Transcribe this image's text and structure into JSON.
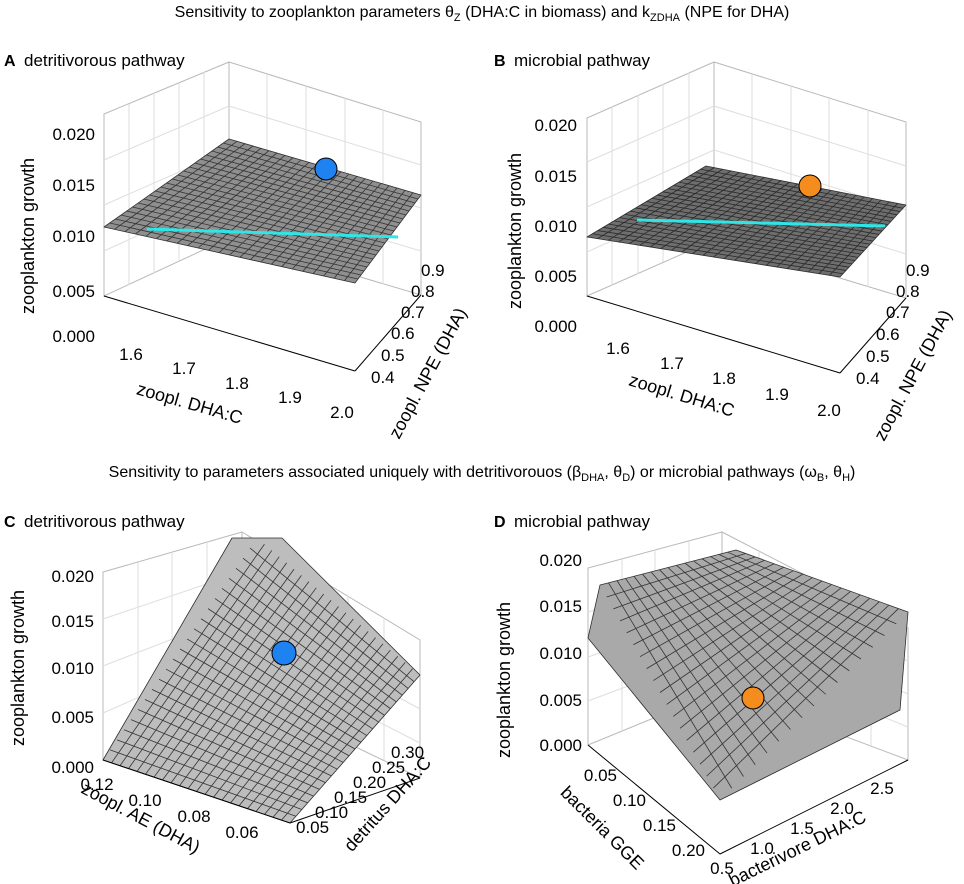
{
  "figure": {
    "title_top_main": "Sensitivity to zooplankton parameters θ",
    "title_top_sub1": "Z",
    "title_top_mid": " (DHA:C in biomass) and k",
    "title_top_sub2": "ZDHA",
    "title_top_end": " (NPE for DHA)",
    "title_bottom_main": "Sensitivity to parameters associated uniquely with detritivorouos (β",
    "title_bottom_sub1": "DHA",
    "title_bottom_p2": ", θ",
    "title_bottom_sub2": "D",
    "title_bottom_p3": ") or microbial pathways (ω",
    "title_bottom_sub3": "B",
    "title_bottom_p4": ", θ",
    "title_bottom_sub4": "H",
    "title_bottom_end": ")"
  },
  "chart_data": [
    {
      "type": "surface3d",
      "panel_label": "A",
      "title": "detritivorous pathway",
      "zlabel": "zooplankton growth",
      "xlabel": "zoopl. DHA:C",
      "ylabel": "zoopl. NPE (DHA)",
      "zticks": [
        "0.000",
        "0.005",
        "0.010",
        "0.015",
        "0.020"
      ],
      "xticks": [
        "1.6",
        "1.7",
        "1.8",
        "1.9",
        "2.0"
      ],
      "yticks": [
        "0.4",
        "0.5",
        "0.6",
        "0.7",
        "0.8",
        "0.9"
      ],
      "xlim": [
        1.55,
        2.0
      ],
      "ylim": [
        0.35,
        0.9
      ],
      "zlim": [
        0.0,
        0.02
      ],
      "reference_line": {
        "color": "#2ee6e6",
        "z": 0.0104
      },
      "marker": {
        "color": "#1e82f0",
        "x": 1.8,
        "y": 0.9,
        "z": 0.0157
      }
    },
    {
      "type": "surface3d",
      "panel_label": "B",
      "title": "microbial pathway",
      "zlabel": "zooplankton growth",
      "xlabel": "zoopl. DHA:C",
      "ylabel": "zoopl. NPE (DHA)",
      "zticks": [
        "0.000",
        "0.005",
        "0.010",
        "0.015",
        "0.020"
      ],
      "xticks": [
        "1.6",
        "1.7",
        "1.8",
        "1.9",
        "2.0"
      ],
      "yticks": [
        "0.4",
        "0.5",
        "0.6",
        "0.7",
        "0.8",
        "0.9"
      ],
      "xlim": [
        1.55,
        2.0
      ],
      "ylim": [
        0.35,
        0.9
      ],
      "zlim": [
        0.0,
        0.02
      ],
      "reference_line": {
        "color": "#2ee6e6",
        "z": 0.0093
      },
      "marker": {
        "color": "#f58c1e",
        "x": 1.8,
        "y": 0.9,
        "z": 0.0131
      }
    },
    {
      "type": "surface3d",
      "panel_label": "C",
      "title": "detritivorous pathway",
      "zlabel": "zooplankton growth",
      "xlabel": "zoopl. AE (DHA)",
      "ylabel": "detritus DHA:C",
      "zticks": [
        "0.000",
        "0.005",
        "0.010",
        "0.015",
        "0.020"
      ],
      "xticks": [
        "0.12",
        "0.10",
        "0.08",
        "0.06"
      ],
      "yticks": [
        "0.05",
        "0.10",
        "0.15",
        "0.20",
        "0.25",
        "0.30"
      ],
      "xlim": [
        0.13,
        0.05
      ],
      "ylim": [
        0.02,
        0.3
      ],
      "zlim": [
        0.0,
        0.02
      ],
      "marker": {
        "color": "#1e82f0",
        "x": 0.09,
        "y": 0.2,
        "z": 0.0108
      }
    },
    {
      "type": "surface3d",
      "panel_label": "D",
      "title": "microbial pathway",
      "zlabel": "zooplankton growth",
      "xlabel": "bacterivore DHA:C",
      "ylabel": "bacteria GGE",
      "zticks": [
        "0.000",
        "0.005",
        "0.010",
        "0.015",
        "0.020"
      ],
      "xticks": [
        "0.5",
        "1.0",
        "1.5",
        "2.0",
        "2.5"
      ],
      "yticks": [
        "0.05",
        "0.10",
        "0.15",
        "0.20"
      ],
      "xlim": [
        0.3,
        2.7
      ],
      "ylim": [
        0.02,
        0.24
      ],
      "zlim": [
        0.0,
        0.02
      ],
      "marker": {
        "color": "#f58c1e",
        "x": 1.6,
        "y": 0.09,
        "z": 0.0055
      }
    }
  ]
}
